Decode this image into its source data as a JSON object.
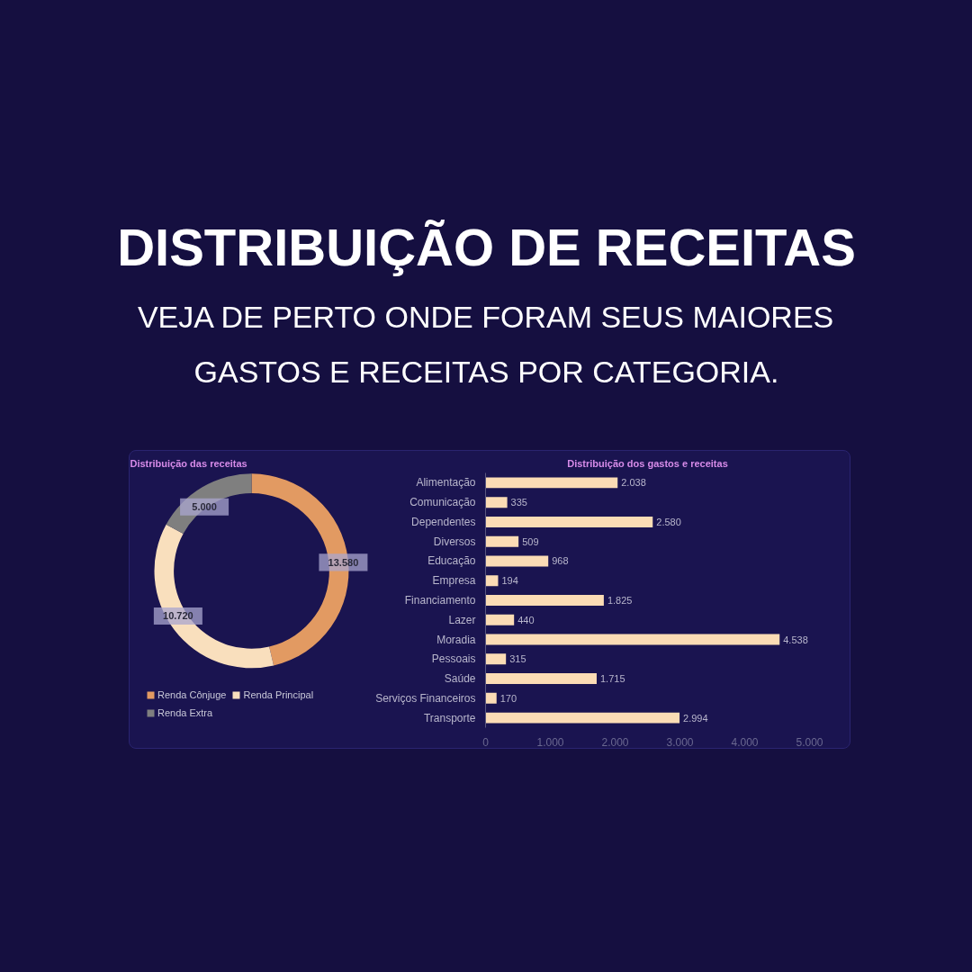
{
  "chart_data": [
    {
      "type": "other",
      "title": "DISTRIBUIÇÃO DE RECEITAS",
      "subtitle": "VEJA DE PERTO ONDE FORAM SEUS MAIORES GASTOS E RECEITAS POR CATEGORIA."
    },
    {
      "type": "donut",
      "title": "Distribuição das receitas",
      "categories": [
        "Renda Cônjuge",
        "Renda Principal",
        "Renda Extra"
      ],
      "values": [
        13580,
        10720,
        5000
      ],
      "colors": [
        "#e29a62",
        "#f9dfbd",
        "#7f7f7f"
      ],
      "value_labels": [
        "13.580",
        "10.720",
        "5.000"
      ],
      "legend": "bottom"
    },
    {
      "type": "bar",
      "orientation": "horizontal",
      "title": "Distribuição dos gastos e receitas",
      "categories": [
        "Alimentação",
        "Comunicação",
        "Dependentes",
        "Diversos",
        "Educação",
        "Empresa",
        "Financiamento",
        "Lazer",
        "Moradia",
        "Pessoais",
        "Saúde",
        "Serviços Financeiros",
        "Transporte"
      ],
      "values": [
        2038,
        335,
        2580,
        509,
        968,
        194,
        1825,
        440,
        4538,
        315,
        1715,
        170,
        2994
      ],
      "value_labels": [
        "2.038",
        "335",
        "2.580",
        "509",
        "968",
        "194",
        "1.825",
        "440",
        "4.538",
        "315",
        "1.715",
        "170",
        "2.994"
      ],
      "color": "#fbdcb5",
      "xlim": [
        0,
        5000
      ],
      "xticks": [
        0,
        {
          "value": 1000,
          "label": "1.000"
        },
        {
          "value": 2000,
          "label": "2.000"
        },
        {
          "value": 3000,
          "label": "3.000"
        },
        {
          "value": 4000,
          "label": "4.000"
        },
        {
          "value": 5000,
          "label": "5.000"
        }
      ],
      "grid": false
    }
  ]
}
